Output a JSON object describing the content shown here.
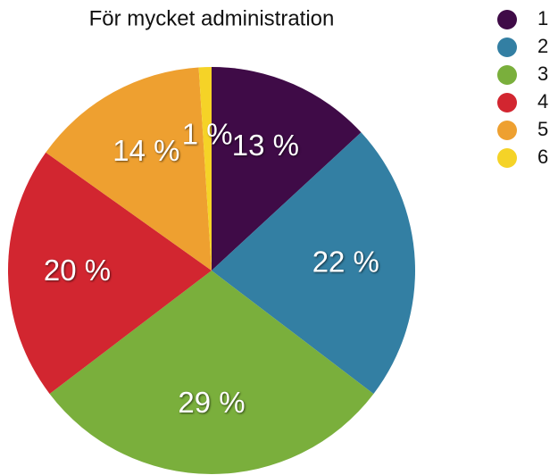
{
  "chart_data": {
    "type": "pie",
    "title": "För mycket administration",
    "categories": [
      "1",
      "2",
      "3",
      "4",
      "5",
      "6"
    ],
    "values": [
      13,
      22,
      29,
      20,
      14,
      1
    ],
    "value_labels": [
      "13 %",
      "22 %",
      "29 %",
      "20 %",
      "14 %",
      "1 %"
    ],
    "colors": [
      "#3f0b47",
      "#337fa3",
      "#7aaf3c",
      "#d22630",
      "#eea030",
      "#f5d327"
    ],
    "legend": "right"
  }
}
